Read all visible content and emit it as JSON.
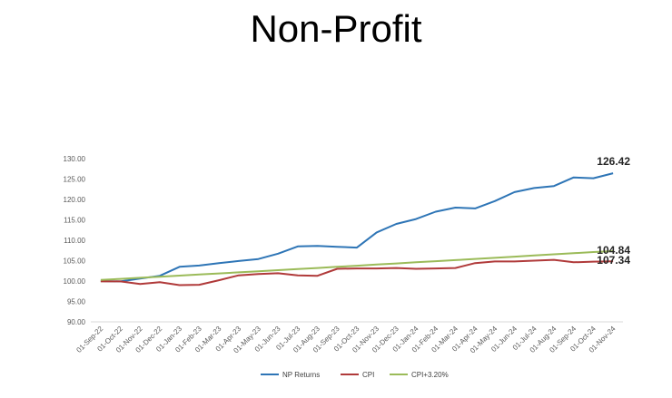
{
  "slide": {
    "title": "Non-Profit"
  },
  "chart_data": {
    "type": "line",
    "title": "",
    "xlabel": "",
    "ylabel": "",
    "ylim": [
      90,
      130
    ],
    "yticks": [
      "90.00",
      "95.00",
      "100.00",
      "105.00",
      "110.00",
      "115.00",
      "120.00",
      "125.00",
      "130.00"
    ],
    "grid": false,
    "legend_position": "bottom",
    "x": [
      "01-Sep-22",
      "01-Oct-22",
      "01-Nov-22",
      "01-Dec-22",
      "01-Jan-23",
      "01-Feb-23",
      "01-Mar-23",
      "01-Apr-23",
      "01-May-23",
      "01-Jun-23",
      "01-Jul-23",
      "01-Aug-23",
      "01-Sep-23",
      "01-Oct-23",
      "01-Nov-23",
      "01-Dec-23",
      "01-Jan-24",
      "01-Feb-24",
      "01-Mar-24",
      "01-Apr-24",
      "01-May-24",
      "01-Jun-24",
      "01-Jul-24",
      "01-Aug-24",
      "01-Sep-24",
      "01-Oct-24",
      "01-Nov-24"
    ],
    "series": [
      {
        "name": "NP Returns",
        "color": "#2E75B6",
        "values": [
          100.0,
          99.9,
          100.6,
          101.3,
          103.5,
          103.8,
          104.4,
          104.9,
          105.4,
          106.7,
          108.5,
          108.6,
          108.4,
          108.2,
          111.9,
          114.0,
          115.2,
          117.0,
          118.0,
          117.8,
          119.6,
          121.8,
          122.8,
          123.3,
          125.4,
          125.2,
          126.42
        ],
        "end_label": "126.42"
      },
      {
        "name": "CPI",
        "color": "#B03A3A",
        "values": [
          99.9,
          99.9,
          99.3,
          99.7,
          99.0,
          99.1,
          100.2,
          101.4,
          101.7,
          101.9,
          101.4,
          101.3,
          103.0,
          103.1,
          103.1,
          103.2,
          103.0,
          103.1,
          103.2,
          104.4,
          104.8,
          104.8,
          105.0,
          105.2,
          104.6,
          104.75,
          104.84
        ],
        "end_label": "104.84"
      },
      {
        "name": "CPI+3.20%",
        "color": "#9BBB59",
        "values": [
          100.26,
          100.53,
          100.79,
          101.06,
          101.33,
          101.59,
          101.86,
          102.13,
          102.4,
          102.67,
          102.94,
          103.21,
          103.49,
          103.76,
          104.04,
          104.31,
          104.59,
          104.87,
          105.14,
          105.42,
          105.7,
          105.98,
          106.26,
          106.55,
          106.83,
          107.11,
          107.34
        ],
        "end_label": "107.34"
      }
    ]
  }
}
